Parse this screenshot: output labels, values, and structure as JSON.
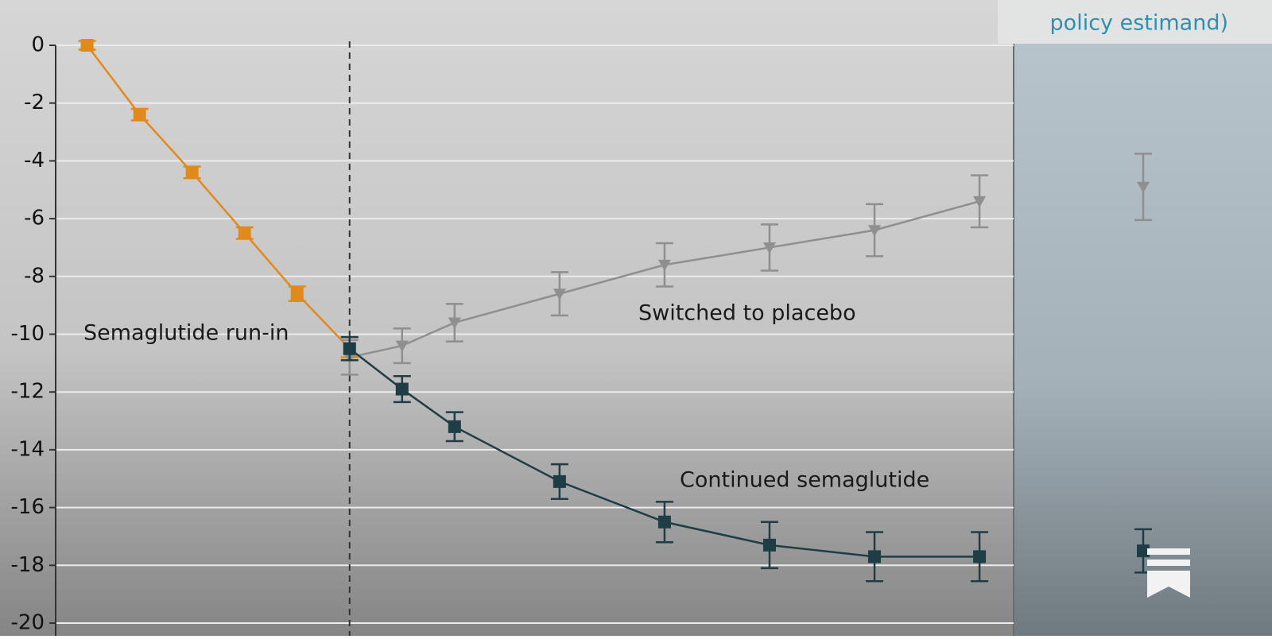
{
  "chart_data": {
    "type": "line",
    "header": "policy estimand)",
    "x": [
      0,
      4,
      8,
      12,
      16,
      20,
      24,
      28,
      36,
      44,
      52,
      60,
      68
    ],
    "xlim": [
      -2.4,
      70.6
    ],
    "ylim": [
      -20,
      0
    ],
    "yticks": [
      0,
      -2,
      -4,
      -6,
      -8,
      -10,
      -12,
      -14,
      -16,
      -18,
      -20
    ],
    "grid": true,
    "divider_x": 20,
    "series": [
      {
        "name": "Semaglutide run-in",
        "color": "#e08a1e",
        "marker": "square",
        "values": [
          0,
          -2.4,
          -4.4,
          -6.5,
          -8.6,
          -10.5,
          null,
          null,
          null,
          null,
          null,
          null,
          null
        ],
        "errors": [
          0.15,
          0.2,
          0.2,
          0.2,
          0.25,
          0.3,
          null,
          null,
          null,
          null,
          null,
          null,
          null
        ]
      },
      {
        "name": "Switched to placebo",
        "color": "#8f8f8f",
        "marker": "triangle",
        "values": [
          null,
          null,
          null,
          null,
          null,
          -10.8,
          -10.4,
          -9.6,
          -8.6,
          -7.6,
          -7.0,
          -6.4,
          -5.4
        ],
        "errors": [
          null,
          null,
          null,
          null,
          null,
          0.6,
          0.6,
          0.65,
          0.75,
          0.75,
          0.8,
          0.9,
          0.9
        ],
        "panel_value": -4.9,
        "panel_error": 1.15
      },
      {
        "name": "Continued semaglutide",
        "color": "#1f3d45",
        "marker": "square",
        "values": [
          null,
          null,
          null,
          null,
          null,
          -10.5,
          -11.9,
          -13.2,
          -15.1,
          -16.5,
          -17.3,
          -17.7,
          -17.7
        ],
        "errors": [
          null,
          null,
          null,
          null,
          null,
          0.4,
          0.45,
          0.5,
          0.6,
          0.7,
          0.8,
          0.85,
          0.85
        ],
        "panel_value": -17.5,
        "panel_error": 0.75
      }
    ]
  }
}
